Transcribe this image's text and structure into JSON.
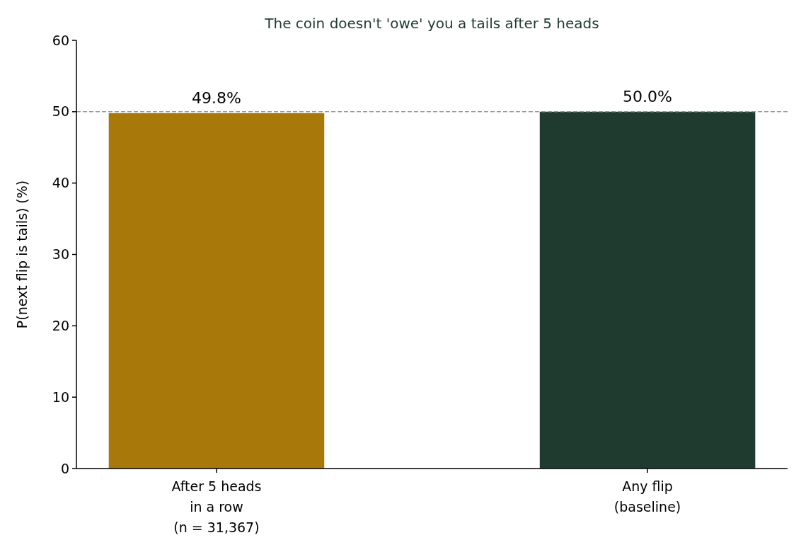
{
  "chart_data": {
    "type": "bar",
    "title": "The coin doesn't 'owe' you a tails after 5 heads",
    "ylabel": "P(next flip is tails)  (%)",
    "categories": [
      "After 5 heads\nin a row\n(n = 31,367)",
      "Any flip\n(baseline)"
    ],
    "values": [
      49.8,
      50.0
    ],
    "colors": [
      "#a8780b",
      "#1f3a2f"
    ],
    "value_labels": [
      "49.8%",
      "50.0%"
    ],
    "ylim": [
      0,
      60
    ],
    "yticks": [
      0,
      10,
      20,
      30,
      40,
      50,
      60
    ],
    "ref_lines": [
      {
        "axis": "y",
        "value": 50,
        "color": "#999999",
        "line_style": "dashed"
      }
    ],
    "grid": false
  }
}
